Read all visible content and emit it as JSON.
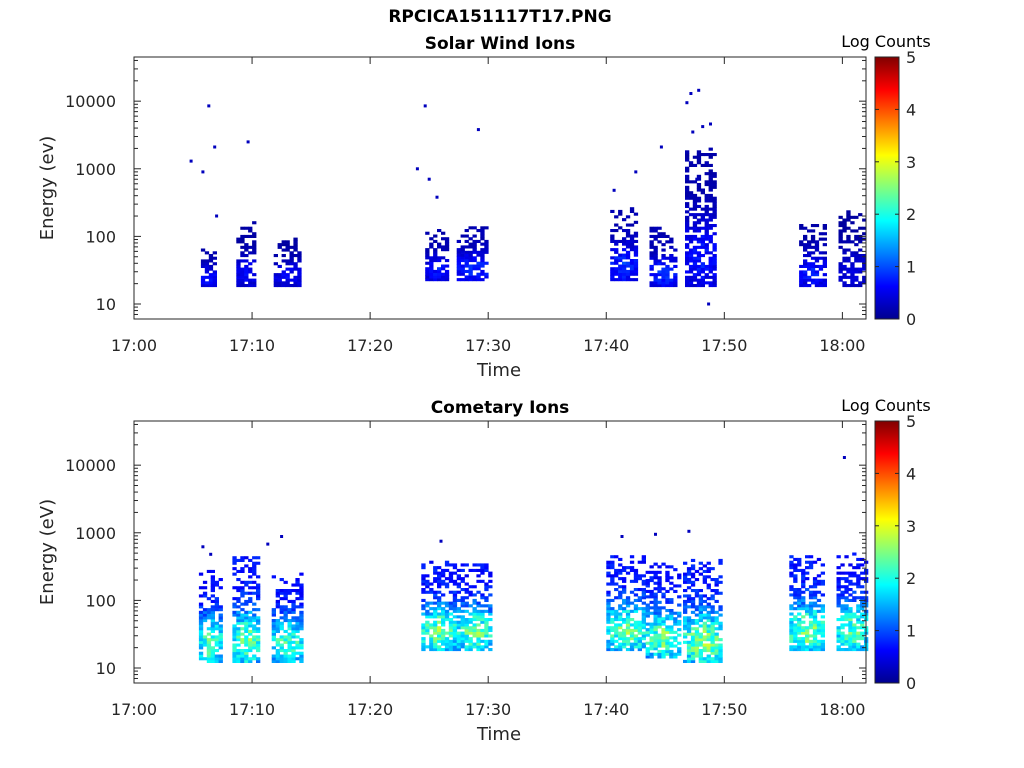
{
  "figure": {
    "title": "RPCICA151117T17.PNG"
  },
  "panels": [
    {
      "title": "Solar Wind Ions",
      "xlabel": "Time",
      "ylabel": "Energy (ev)",
      "colorbar_label": "Log Counts"
    },
    {
      "title": "Cometary Ions",
      "xlabel": "Time",
      "ylabel": "Energy (eV)",
      "colorbar_label": "Log Counts"
    }
  ],
  "colors": {
    "frame": "#262626",
    "background": "#ffffff",
    "colormap": "jet"
  },
  "chart_data": [
    {
      "type": "heatmap",
      "title": "Solar Wind Ions",
      "xlabel": "Time",
      "ylabel": "Energy (ev)",
      "xlim": [
        "17:00",
        "18:02"
      ],
      "ylim": [
        6,
        45000
      ],
      "yscale": "log",
      "x_ticks": [
        "17:00",
        "17:10",
        "17:20",
        "17:30",
        "17:40",
        "17:50",
        "18:00"
      ],
      "y_ticks": [
        "10",
        "100",
        "1000",
        "10000"
      ],
      "y_tick_values": [
        10,
        100,
        1000,
        10000
      ],
      "colorbar": {
        "label": "Log Counts",
        "range": [
          0,
          5
        ],
        "ticks": [
          "0",
          "1",
          "2",
          "3",
          "4",
          "5"
        ]
      },
      "grid": false,
      "clusters": [
        {
          "t0": "17:05:40",
          "t1": "17:06:40",
          "emin": 18,
          "emax": 70,
          "peak": 0.6
        },
        {
          "t0": "17:08:40",
          "t1": "17:10:10",
          "emin": 18,
          "emax": 160,
          "peak": 0.5
        },
        {
          "t0": "17:11:50",
          "t1": "17:14:00",
          "emin": 18,
          "emax": 100,
          "peak": 0.5
        },
        {
          "t0": "17:24:40",
          "t1": "17:26:20",
          "emin": 22,
          "emax": 120,
          "peak": 0.6
        },
        {
          "t0": "17:27:20",
          "t1": "17:29:50",
          "emin": 22,
          "emax": 140,
          "peak": 0.7
        },
        {
          "t0": "17:40:20",
          "t1": "17:42:20",
          "emin": 22,
          "emax": 250,
          "peak": 0.7
        },
        {
          "t0": "17:43:40",
          "t1": "17:45:40",
          "emin": 18,
          "emax": 130,
          "peak": 0.7
        },
        {
          "t0": "17:46:40",
          "t1": "17:49:10",
          "emin": 18,
          "emax": 2000,
          "peak": 0.6
        },
        {
          "t0": "17:56:20",
          "t1": "17:58:20",
          "emin": 18,
          "emax": 150,
          "peak": 0.6
        },
        {
          "t0": "17:59:40",
          "t1": "18:01:50",
          "emin": 18,
          "emax": 240,
          "peak": 0.4
        }
      ],
      "points": [
        [
          "17:04:50",
          1300
        ],
        [
          "17:05:50",
          900
        ],
        [
          "17:06:20",
          8500
        ],
        [
          "17:06:50",
          2100
        ],
        [
          "17:07:00",
          200
        ],
        [
          "17:09:40",
          2500
        ],
        [
          "17:24:00",
          1000
        ],
        [
          "17:24:40",
          8500
        ],
        [
          "17:25:00",
          700
        ],
        [
          "17:25:40",
          380
        ],
        [
          "17:29:10",
          3800
        ],
        [
          "17:40:40",
          480
        ],
        [
          "17:42:30",
          900
        ],
        [
          "17:44:40",
          2100
        ],
        [
          "17:46:50",
          9500
        ],
        [
          "17:47:10",
          13000
        ],
        [
          "17:47:50",
          14500
        ],
        [
          "17:47:20",
          3500
        ],
        [
          "17:48:10",
          4200
        ],
        [
          "17:48:50",
          4600
        ],
        [
          "17:48:30",
          1200
        ],
        [
          "17:47:40",
          700
        ],
        [
          "17:48:40",
          10
        ]
      ]
    },
    {
      "type": "heatmap",
      "title": "Cometary Ions",
      "xlabel": "Time",
      "ylabel": "Energy (eV)",
      "xlim": [
        "17:00",
        "18:02"
      ],
      "ylim": [
        6,
        45000
      ],
      "yscale": "log",
      "x_ticks": [
        "17:00",
        "17:10",
        "17:20",
        "17:30",
        "17:40",
        "17:50",
        "18:00"
      ],
      "y_ticks": [
        "10",
        "100",
        "1000",
        "10000"
      ],
      "y_tick_values": [
        10,
        100,
        1000,
        10000
      ],
      "colorbar": {
        "label": "Log Counts",
        "range": [
          0,
          5
        ],
        "ticks": [
          "0",
          "1",
          "2",
          "3",
          "4",
          "5"
        ]
      },
      "grid": false,
      "clusters": [
        {
          "t0": "17:05:30",
          "t1": "17:07:10",
          "emin": 12,
          "emax": 300,
          "peak": 1.9
        },
        {
          "t0": "17:08:20",
          "t1": "17:10:30",
          "emin": 12,
          "emax": 420,
          "peak": 2.0
        },
        {
          "t0": "17:11:40",
          "t1": "17:14:00",
          "emin": 12,
          "emax": 250,
          "peak": 1.9
        },
        {
          "t0": "17:24:20",
          "t1": "17:27:00",
          "emin": 18,
          "emax": 420,
          "peak": 2.0
        },
        {
          "t0": "17:27:20",
          "t1": "17:30:10",
          "emin": 18,
          "emax": 350,
          "peak": 2.0
        },
        {
          "t0": "17:40:00",
          "t1": "17:43:10",
          "emin": 18,
          "emax": 450,
          "peak": 2.0
        },
        {
          "t0": "17:43:20",
          "t1": "17:46:10",
          "emin": 14,
          "emax": 350,
          "peak": 2.0
        },
        {
          "t0": "17:46:30",
          "t1": "17:49:40",
          "emin": 12,
          "emax": 400,
          "peak": 2.1
        },
        {
          "t0": "17:55:30",
          "t1": "17:58:20",
          "emin": 18,
          "emax": 450,
          "peak": 2.1
        },
        {
          "t0": "17:59:30",
          "t1": "18:02:00",
          "emin": 18,
          "emax": 500,
          "peak": 1.9
        }
      ],
      "points": [
        [
          "17:05:50",
          620
        ],
        [
          "17:06:30",
          480
        ],
        [
          "17:11:20",
          680
        ],
        [
          "17:12:30",
          880
        ],
        [
          "17:26:00",
          750
        ],
        [
          "17:41:20",
          880
        ],
        [
          "17:44:10",
          950
        ],
        [
          "17:47:00",
          1050
        ],
        [
          "18:00:10",
          13000
        ]
      ]
    }
  ]
}
